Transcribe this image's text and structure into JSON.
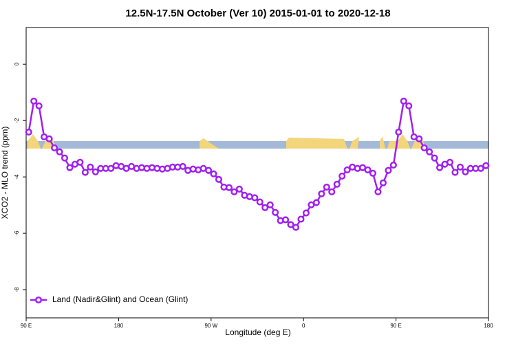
{
  "chart_data": {
    "type": "line",
    "title": "12.5N-17.5N October (Ver 10)   2015-01-01 to 2020-12-18",
    "xlabel": "Longitude (deg E)",
    "ylabel": "XCO2 - MLO trend (ppm)",
    "xlim": [
      90,
      540
    ],
    "xticks": [
      {
        "value": 90,
        "label": "90 E"
      },
      180,
      {
        "value": 270,
        "label": "90 W"
      },
      {
        "value": 360,
        "label": "0"
      },
      {
        "value": 450,
        "label": "90 E"
      },
      {
        "value": 540,
        "label": "180"
      }
    ],
    "ylim": [
      -9.0,
      1.3
    ],
    "yticks": [
      0,
      -2,
      -4,
      -6,
      -8
    ],
    "grid": false,
    "legend": "bottom-left",
    "x": [
      92.5,
      97.5,
      102.5,
      107.5,
      112.5,
      117.5,
      122.5,
      127.5,
      132.5,
      137.5,
      142.5,
      147.5,
      152.5,
      157.5,
      162.5,
      167.5,
      172.5,
      177.5,
      182.5,
      187.5,
      192.5,
      197.5,
      202.5,
      207.5,
      212.5,
      217.5,
      222.5,
      227.5,
      232.5,
      237.5,
      242.5,
      247.5,
      252.5,
      257.5,
      262.5,
      267.5,
      272.5,
      277.5,
      282.5,
      287.5,
      292.5,
      297.5,
      302.5,
      307.5,
      312.5,
      317.5,
      322.5,
      327.5,
      332.5,
      337.5,
      342.5,
      347.5,
      352.5,
      357.5,
      362.5,
      367.5,
      372.5,
      377.5,
      382.5,
      387.5,
      392.5,
      397.5,
      402.5,
      407.5,
      412.5,
      417.5,
      422.5,
      427.5,
      432.5,
      437.5,
      442.5,
      447.5,
      452.5,
      457.5,
      462.5,
      467.5,
      472.5,
      477.5,
      482.5,
      487.5,
      492.5,
      497.5,
      502.5,
      507.5,
      512.5,
      517.5,
      522.5,
      527.5,
      532.5,
      537.5
    ],
    "series": [
      {
        "name": "Land (Nadir&Glint) and Ocean (Glint)",
        "color": "#a020f0",
        "values": [
          -2.41,
          -1.31,
          -1.48,
          -2.58,
          -2.65,
          -2.97,
          -3.11,
          -3.33,
          -3.67,
          -3.55,
          -3.48,
          -3.84,
          -3.65,
          -3.82,
          -3.7,
          -3.7,
          -3.7,
          -3.6,
          -3.63,
          -3.7,
          -3.63,
          -3.7,
          -3.67,
          -3.7,
          -3.67,
          -3.7,
          -3.72,
          -3.7,
          -3.65,
          -3.65,
          -3.63,
          -3.77,
          -3.72,
          -3.75,
          -3.7,
          -3.77,
          -3.89,
          -4.09,
          -4.36,
          -4.38,
          -4.53,
          -4.43,
          -4.65,
          -4.7,
          -4.74,
          -4.89,
          -5.09,
          -4.99,
          -5.26,
          -5.55,
          -5.52,
          -5.69,
          -5.79,
          -5.5,
          -5.28,
          -4.99,
          -4.91,
          -4.6,
          -4.36,
          -4.53,
          -4.26,
          -3.97,
          -3.75,
          -3.65,
          -3.7,
          -3.67,
          -3.75,
          -3.87,
          -4.53,
          -4.21,
          -3.77,
          -3.58,
          -2.41,
          -1.31,
          -1.48,
          -2.58,
          -2.65,
          -2.97,
          -3.11,
          -3.33,
          -3.67,
          -3.55,
          -3.48,
          -3.84,
          -3.65,
          -3.82,
          -3.7,
          -3.7,
          -3.7,
          -3.6
        ]
      }
    ]
  }
}
